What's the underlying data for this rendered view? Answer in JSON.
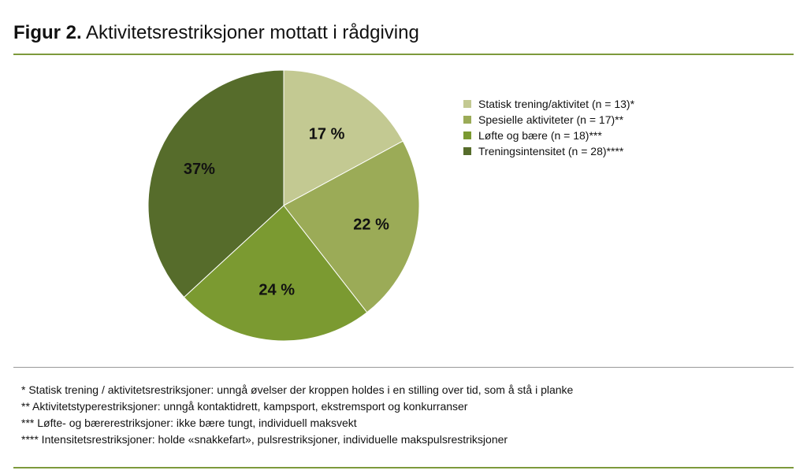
{
  "header": {
    "figure_label": "Figur 2.",
    "title": "Aktivitetsrestriksjoner mottatt i rådgiving"
  },
  "chart_data": {
    "type": "pie",
    "title": "Aktivitetsrestriksjoner mottatt i rådgiving",
    "legend_position": "right",
    "slices": [
      {
        "name": "Statisk trening/aktivitet (n = 13)*",
        "n": 13,
        "value": 17,
        "label": "17 %",
        "color": "#c3c992"
      },
      {
        "name": "Spesielle aktiviteter (n = 17)**",
        "n": 17,
        "value": 22,
        "label": "22 %",
        "color": "#9bab57"
      },
      {
        "name": "Løfte og bære (n = 18)***",
        "n": 18,
        "value": 24,
        "label": "24 %",
        "color": "#7b9a31"
      },
      {
        "name": "Treningsintensitet (n = 28)****",
        "n": 28,
        "value": 37,
        "label": "37%",
        "color": "#566c2b"
      }
    ]
  },
  "footnotes": [
    "* Statisk trening / aktivitetsrestriksjoner: unngå øvelser der kroppen holdes i en stilling over tid, som å stå i planke",
    "** Aktivitetstyperestriksjoner: unngå kontaktidrett, kampsport, ekstremsport og konkurranser",
    "*** Løfte- og bærerestriksjoner: ikke bære tungt, individuell maksvekt",
    "**** Intensitetsrestriksjoner: holde «snakkefart», pulsrestriksjoner, individuelle makspulsrestriksjoner"
  ]
}
